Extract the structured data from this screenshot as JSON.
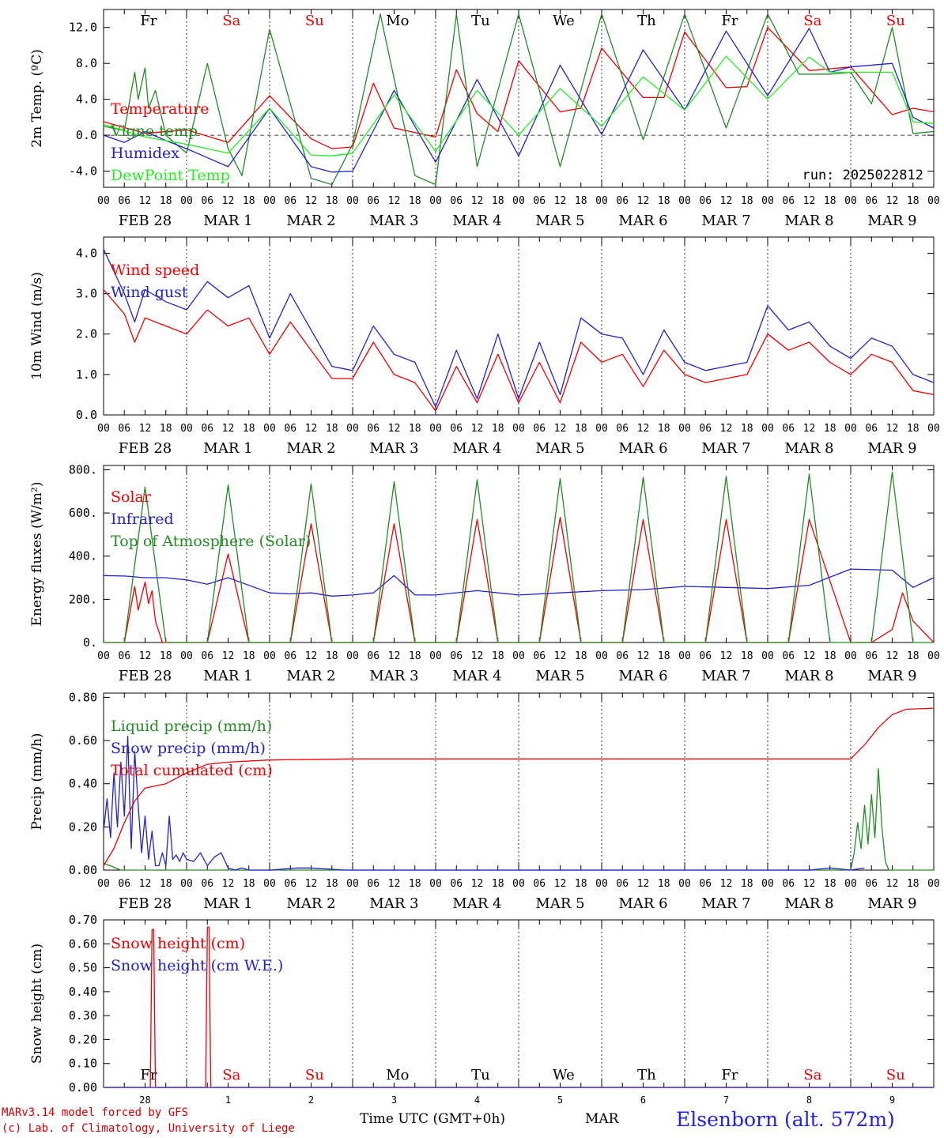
{
  "chart_data": [
    {
      "type": "line",
      "ylabel": "2m Temp. (ºC)",
      "yticks": [
        "-4.0",
        "0.0",
        "4.0",
        "8.0",
        "12.0"
      ],
      "ylim": [
        -5.8,
        14
      ],
      "annotation": "run: 2025022812",
      "day_labels": [
        {
          "text": "Fr",
          "color": "#000000"
        },
        {
          "text": "Sa",
          "color": "#ee0000"
        },
        {
          "text": "Su",
          "color": "#ee0000"
        },
        {
          "text": "Mo",
          "color": "#000000"
        },
        {
          "text": "Tu",
          "color": "#000000"
        },
        {
          "text": "We",
          "color": "#000000"
        },
        {
          "text": "Th",
          "color": "#000000"
        },
        {
          "text": "Fr",
          "color": "#000000"
        },
        {
          "text": "Sa",
          "color": "#ee0000"
        },
        {
          "text": "Su",
          "color": "#ee0000"
        }
      ],
      "series": [
        {
          "name": "Temperature",
          "color": "#ee0000",
          "x": [
            0,
            12,
            24,
            36,
            48,
            60,
            66,
            72,
            78,
            84,
            96,
            102,
            108,
            114,
            120,
            132,
            138,
            144,
            156,
            162,
            168,
            180,
            186,
            192,
            204,
            210,
            216,
            228,
            234,
            240
          ],
          "y": [
            1.5,
            0.2,
            0.6,
            -0.8,
            4.4,
            -0.4,
            -1.5,
            -1.3,
            5.8,
            0.8,
            -0.2,
            7.3,
            2.4,
            0.4,
            8.3,
            2.6,
            3.0,
            9.7,
            4.2,
            4.2,
            11.5,
            5.3,
            5.4,
            12.0,
            7.2,
            7.4,
            7.6,
            2.3,
            3.0,
            2.6
          ]
        },
        {
          "name": "Vigne temp",
          "color": "#228b22",
          "x": [
            0,
            6,
            9,
            10,
            12,
            13,
            15,
            18,
            24,
            30,
            36,
            40,
            48,
            60,
            66,
            72,
            80,
            90,
            96,
            102,
            108,
            120,
            132,
            144,
            156,
            168,
            180,
            192,
            201,
            210,
            216,
            222,
            228,
            234,
            240
          ],
          "y": [
            1.0,
            0.5,
            7.0,
            4.0,
            7.5,
            3.0,
            5.0,
            0.0,
            -2.0,
            8.0,
            -1.5,
            -4.5,
            11.8,
            -4.8,
            -5.5,
            -1.0,
            13.5,
            -4.5,
            -5.5,
            13.5,
            -3.5,
            13.5,
            -3.5,
            13.5,
            -0.5,
            13.5,
            0.8,
            13.5,
            6.8,
            6.8,
            7.0,
            3.5,
            12.0,
            0.2,
            0.4
          ]
        },
        {
          "name": "Humidex",
          "color": "#2222cc",
          "x": [
            0,
            6,
            12,
            18,
            24,
            36,
            48,
            60,
            66,
            72,
            84,
            96,
            108,
            120,
            132,
            144,
            156,
            168,
            180,
            192,
            204,
            210,
            216,
            228,
            234,
            240
          ],
          "y": [
            0.0,
            -0.8,
            0.4,
            -0.6,
            -1.5,
            -3.5,
            3.0,
            -3.5,
            -4.1,
            -4.0,
            5.0,
            -3.0,
            6.2,
            -2.3,
            7.8,
            0.1,
            9.5,
            2.8,
            11.6,
            4.4,
            11.9,
            7.0,
            7.6,
            8.0,
            2.0,
            0.8
          ]
        },
        {
          "name": "DewPoint Temp",
          "color": "#22ee22",
          "x": [
            0,
            12,
            24,
            36,
            48,
            60,
            66,
            72,
            84,
            96,
            108,
            120,
            132,
            144,
            156,
            168,
            180,
            192,
            204,
            210,
            216,
            228,
            234,
            240
          ],
          "y": [
            1.2,
            -0.2,
            -1.0,
            -2.0,
            3.0,
            -2.2,
            -2.3,
            -2.0,
            4.5,
            -1.8,
            5.0,
            0.0,
            5.2,
            1.0,
            6.5,
            2.8,
            8.8,
            4.0,
            8.7,
            7.0,
            7.0,
            7.0,
            1.5,
            1.3
          ]
        }
      ]
    },
    {
      "type": "line",
      "ylabel": "10m Wind (m/s)",
      "yticks": [
        "0.0",
        "1.0",
        "2.0",
        "3.0",
        "4.0"
      ],
      "ylim": [
        0,
        4.4
      ],
      "series": [
        {
          "name": "Wind speed",
          "color": "#ee0000",
          "x": [
            0,
            6,
            9,
            12,
            18,
            24,
            30,
            36,
            42,
            48,
            54,
            60,
            66,
            72,
            78,
            84,
            90,
            96,
            102,
            108,
            114,
            120,
            126,
            132,
            138,
            144,
            150,
            156,
            162,
            168,
            174,
            180,
            186,
            192,
            198,
            204,
            210,
            216,
            222,
            228,
            234,
            240
          ],
          "y": [
            3.1,
            2.5,
            1.8,
            2.4,
            2.2,
            2.0,
            2.6,
            2.2,
            2.4,
            1.5,
            2.3,
            1.6,
            0.9,
            0.9,
            1.8,
            1.0,
            0.8,
            0.1,
            1.2,
            0.3,
            1.5,
            0.3,
            1.3,
            0.3,
            1.8,
            1.3,
            1.5,
            0.7,
            1.6,
            1.0,
            0.8,
            0.9,
            1.0,
            2.0,
            1.6,
            1.8,
            1.3,
            1.0,
            1.5,
            1.3,
            0.6,
            0.5
          ]
        },
        {
          "name": "Wind gust",
          "color": "#2222cc",
          "x": [
            0,
            6,
            9,
            12,
            18,
            24,
            30,
            36,
            42,
            48,
            54,
            60,
            66,
            72,
            78,
            84,
            90,
            96,
            102,
            108,
            114,
            120,
            126,
            132,
            138,
            144,
            150,
            156,
            162,
            168,
            174,
            180,
            186,
            192,
            198,
            204,
            210,
            216,
            222,
            228,
            234,
            240
          ],
          "y": [
            4.1,
            3.0,
            2.3,
            3.1,
            2.8,
            2.6,
            3.3,
            2.9,
            3.2,
            1.9,
            3.0,
            2.1,
            1.2,
            1.1,
            2.2,
            1.5,
            1.3,
            0.2,
            1.6,
            0.4,
            2.0,
            0.4,
            1.8,
            0.5,
            2.4,
            2.0,
            1.9,
            1.0,
            2.1,
            1.3,
            1.1,
            1.2,
            1.3,
            2.7,
            2.1,
            2.3,
            1.7,
            1.4,
            1.9,
            1.7,
            1.0,
            0.8
          ]
        }
      ]
    },
    {
      "type": "line",
      "ylabel": "Energy fluxes (W/m²)",
      "yticks": [
        "0.",
        "200.",
        "400.",
        "600.",
        "800."
      ],
      "ylim": [
        0,
        820
      ],
      "series": [
        {
          "name": "Solar",
          "color": "#ee0000",
          "x": [
            0,
            6,
            9,
            10,
            12,
            13,
            14,
            15,
            17,
            24,
            30,
            36,
            42,
            48,
            54,
            60,
            66,
            72,
            78,
            84,
            90,
            96,
            102,
            108,
            114,
            120,
            126,
            132,
            138,
            144,
            150,
            156,
            162,
            168,
            174,
            180,
            186,
            192,
            198,
            204,
            216,
            222,
            228,
            231,
            234,
            240
          ],
          "y": [
            0,
            0,
            260,
            150,
            280,
            180,
            240,
            100,
            0,
            0,
            0,
            410,
            0,
            0,
            0,
            550,
            0,
            0,
            0,
            550,
            0,
            0,
            0,
            570,
            0,
            0,
            0,
            580,
            0,
            0,
            0,
            570,
            0,
            0,
            0,
            570,
            0,
            0,
            0,
            570,
            0,
            0,
            60,
            230,
            100,
            0
          ]
        },
        {
          "name": "Infrared",
          "color": "#2222cc",
          "x": [
            0,
            6,
            12,
            18,
            24,
            30,
            36,
            48,
            54,
            60,
            66,
            72,
            78,
            84,
            90,
            96,
            108,
            120,
            132,
            144,
            156,
            168,
            180,
            192,
            204,
            216,
            228,
            234,
            240
          ],
          "y": [
            310,
            308,
            300,
            300,
            290,
            270,
            300,
            230,
            225,
            230,
            215,
            220,
            230,
            310,
            220,
            220,
            240,
            220,
            230,
            240,
            245,
            260,
            255,
            250,
            265,
            340,
            335,
            255,
            300
          ]
        },
        {
          "name": "Top of Atmosphere (Solar)",
          "color": "#228b22",
          "x": [
            0,
            6,
            12,
            18,
            24,
            30,
            36,
            42,
            48,
            54,
            60,
            66,
            72,
            78,
            84,
            90,
            96,
            102,
            108,
            114,
            120,
            126,
            132,
            138,
            144,
            150,
            156,
            162,
            168,
            174,
            180,
            186,
            192,
            198,
            204,
            210,
            216,
            222,
            228,
            234,
            240
          ],
          "y": [
            0,
            0,
            720,
            0,
            0,
            0,
            730,
            0,
            0,
            0,
            735,
            0,
            0,
            0,
            745,
            0,
            0,
            0,
            755,
            0,
            0,
            0,
            760,
            0,
            0,
            0,
            765,
            0,
            0,
            0,
            770,
            0,
            0,
            0,
            780,
            0,
            0,
            0,
            790,
            0,
            0
          ]
        }
      ]
    },
    {
      "type": "line",
      "ylabel": "Precip (mm/h)",
      "yticks": [
        "0.00",
        "0.20",
        "0.40",
        "0.60",
        "0.80"
      ],
      "ylim": [
        0,
        0.82
      ],
      "series": [
        {
          "name": "Liquid precip (mm/h)",
          "color": "#228b22",
          "x": [
            0,
            2,
            5,
            8,
            12,
            96,
            204,
            216,
            217,
            218,
            219,
            220,
            221,
            222,
            223,
            224,
            225,
            226,
            227,
            228,
            229,
            230,
            234,
            240
          ],
          "y": [
            0.03,
            0.02,
            0,
            0,
            0,
            0,
            0,
            0,
            0.08,
            0.22,
            0.1,
            0.3,
            0.12,
            0.35,
            0.15,
            0.47,
            0.2,
            0.04,
            0,
            0,
            0,
            0,
            0,
            0
          ]
        },
        {
          "name": "Snow precip (mm/h)",
          "color": "#2222cc",
          "x": [
            0,
            1,
            2,
            3,
            4,
            5,
            6,
            7,
            8,
            9,
            10,
            11,
            12,
            13,
            14,
            15,
            16,
            17,
            18,
            19,
            20,
            21,
            22,
            23,
            24,
            26,
            28,
            30,
            32,
            34,
            36,
            38,
            40,
            42,
            44,
            48,
            56,
            60,
            70,
            204,
            210,
            216,
            220
          ],
          "y": [
            0.18,
            0.33,
            0.15,
            0.45,
            0.2,
            0.5,
            0.25,
            0.62,
            0.1,
            0.55,
            0.3,
            0.08,
            0.25,
            0.05,
            0.18,
            0.02,
            0.02,
            0.08,
            0.02,
            0.25,
            0.05,
            0.07,
            0.04,
            0.08,
            0.05,
            0.04,
            0.08,
            0.02,
            0.06,
            0.08,
            0.01,
            0.0,
            0.01,
            0.0,
            0.0,
            0.0,
            0.01,
            0.01,
            0.0,
            0.0,
            0.01,
            0.0,
            0.01
          ]
        },
        {
          "name": "Total cumulated (cm)",
          "color": "#ee0000",
          "x": [
            0,
            3,
            6,
            9,
            12,
            18,
            24,
            30,
            36,
            48,
            72,
            96,
            120,
            144,
            168,
            192,
            216,
            220,
            224,
            228,
            232,
            240
          ],
          "y": [
            0.02,
            0.1,
            0.22,
            0.32,
            0.38,
            0.4,
            0.45,
            0.49,
            0.5,
            0.51,
            0.515,
            0.515,
            0.515,
            0.515,
            0.515,
            0.515,
            0.515,
            0.58,
            0.66,
            0.72,
            0.745,
            0.75
          ]
        }
      ]
    },
    {
      "type": "line",
      "ylabel": "Snow height (cm)",
      "yticks": [
        "0.00",
        "0.10",
        "0.20",
        "0.30",
        "0.40",
        "0.50",
        "0.60",
        "0.70"
      ],
      "ylim": [
        0,
        0.7
      ],
      "series": [
        {
          "name": "Snow height (cm)",
          "color": "#ee0000",
          "x": [
            0,
            13.5,
            14,
            14.5,
            15,
            29.5,
            30,
            30.5,
            31,
            240
          ],
          "y": [
            0,
            0,
            0.66,
            0.66,
            0,
            0,
            0.67,
            0.67,
            0,
            0
          ]
        },
        {
          "name": "Snow height (cm W.E.)",
          "color": "#2222cc",
          "x": [
            0,
            240
          ],
          "y": [
            0,
            0
          ]
        }
      ],
      "day_labels": [
        {
          "text": "Fr",
          "color": "#000000"
        },
        {
          "text": "Sa",
          "color": "#ee0000"
        },
        {
          "text": "Su",
          "color": "#ee0000"
        },
        {
          "text": "Mo",
          "color": "#000000"
        },
        {
          "text": "Tu",
          "color": "#000000"
        },
        {
          "text": "We",
          "color": "#000000"
        },
        {
          "text": "Th",
          "color": "#000000"
        },
        {
          "text": "Fr",
          "color": "#000000"
        },
        {
          "text": "Sa",
          "color": "#ee0000"
        },
        {
          "text": "Su",
          "color": "#ee0000"
        }
      ],
      "day_numbers": [
        "28",
        "1",
        "2",
        "3",
        "4",
        "5",
        "6",
        "7",
        "8",
        "9"
      ]
    }
  ],
  "x_axis": {
    "hour_labels": [
      "00",
      "06",
      "12",
      "18"
    ],
    "date_labels": [
      "FEB 28",
      "MAR  1",
      "MAR  2",
      "MAR  3",
      "MAR  4",
      "MAR  5",
      "MAR  6",
      "MAR  7",
      "MAR  8",
      "MAR  9"
    ]
  },
  "footer": {
    "credit_line1": "MARv3.14 model forced by GFS",
    "credit_line2": "(c) Lab. of Climatology, University of Liege",
    "time_label": "Time UTC (GMT+0h)",
    "month_label": "MAR",
    "station": "Elsenborn (alt. 572m)"
  }
}
